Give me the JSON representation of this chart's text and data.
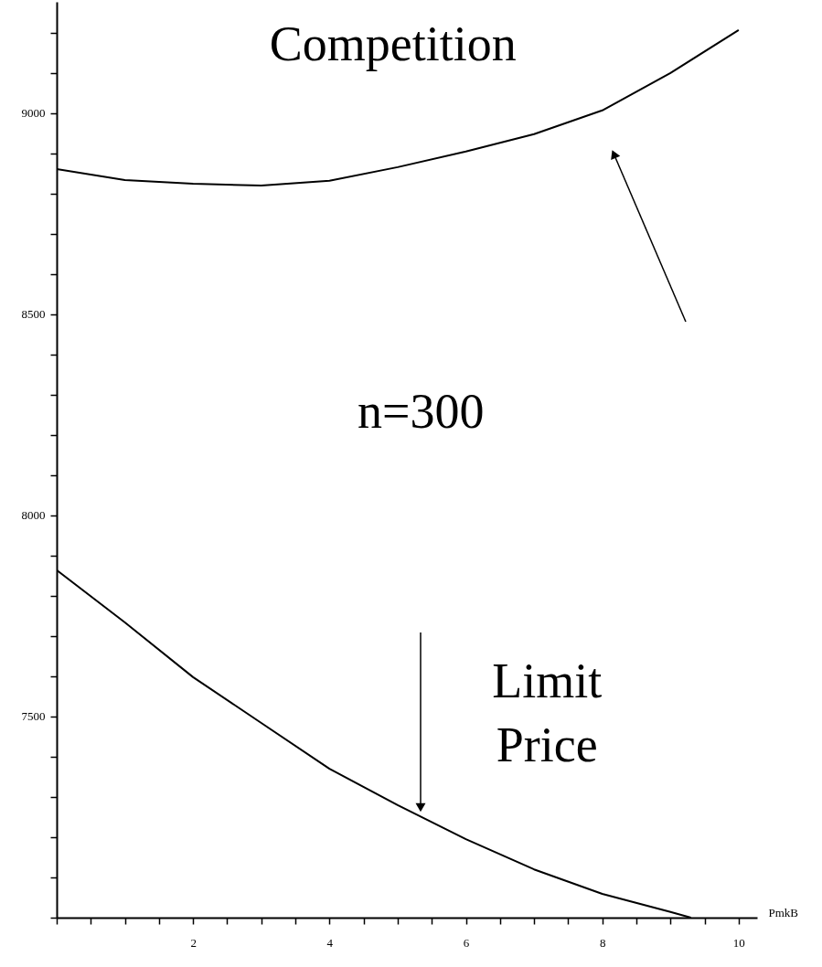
{
  "chart_data": {
    "type": "line",
    "xlabel": "PmkB",
    "x": [
      0,
      1,
      2,
      3,
      4,
      5,
      6,
      7,
      8,
      9,
      10
    ],
    "series": [
      {
        "color": "#000000",
        "values": [
          8861,
          8834,
          8825,
          8820,
          8832,
          8866,
          8905,
          8948,
          9007,
          9100,
          9207
        ]
      },
      {
        "color": "#000000",
        "x": [
          0,
          1,
          2,
          3,
          4,
          5,
          6,
          7,
          8,
          9,
          9.3
        ],
        "values": [
          7864,
          7734,
          7598,
          7484,
          7370,
          7280,
          7195,
          7120,
          7059,
          7014,
          7000
        ]
      }
    ],
    "annotations": [
      "Competition",
      "n=300",
      "Limit Price"
    ],
    "xlim": [
      0,
      10.27
    ],
    "ylim": [
      7000,
      9277
    ],
    "xticks": [
      {
        "value": 0,
        "label": null
      },
      {
        "value": 0.5,
        "label": null
      },
      {
        "value": 1,
        "label": null
      },
      {
        "value": 1.5,
        "label": null
      },
      2,
      {
        "value": 2.5,
        "label": null
      },
      {
        "value": 3,
        "label": null
      },
      {
        "value": 3.5,
        "label": null
      },
      4,
      {
        "value": 4.5,
        "label": null
      },
      {
        "value": 5,
        "label": null
      },
      {
        "value": 5.5,
        "label": null
      },
      6,
      {
        "value": 6.5,
        "label": null
      },
      {
        "value": 7,
        "label": null
      },
      {
        "value": 7.5,
        "label": null
      },
      8,
      {
        "value": 8.5,
        "label": null
      },
      {
        "value": 9,
        "label": null
      },
      {
        "value": 9.5,
        "label": null
      },
      10
    ],
    "yticks": [
      {
        "value": 7000,
        "label": null
      },
      {
        "value": 7100,
        "label": null
      },
      {
        "value": 7200,
        "label": null
      },
      {
        "value": 7300,
        "label": null
      },
      {
        "value": 7400,
        "label": null
      },
      7500,
      {
        "value": 7600,
        "label": null
      },
      {
        "value": 7700,
        "label": null
      },
      {
        "value": 7800,
        "label": null
      },
      {
        "value": 7900,
        "label": null
      },
      8000,
      {
        "value": 8100,
        "label": null
      },
      {
        "value": 8200,
        "label": null
      },
      {
        "value": 8300,
        "label": null
      },
      {
        "value": 8400,
        "label": null
      },
      8500,
      {
        "value": 8600,
        "label": null
      },
      {
        "value": 8700,
        "label": null
      },
      {
        "value": 8800,
        "label": null
      },
      {
        "value": 8900,
        "label": null
      },
      9000,
      {
        "value": 9100,
        "label": null
      },
      {
        "value": 9200,
        "label": null
      }
    ],
    "grid": false,
    "marker": "none",
    "line_style": "solid"
  }
}
